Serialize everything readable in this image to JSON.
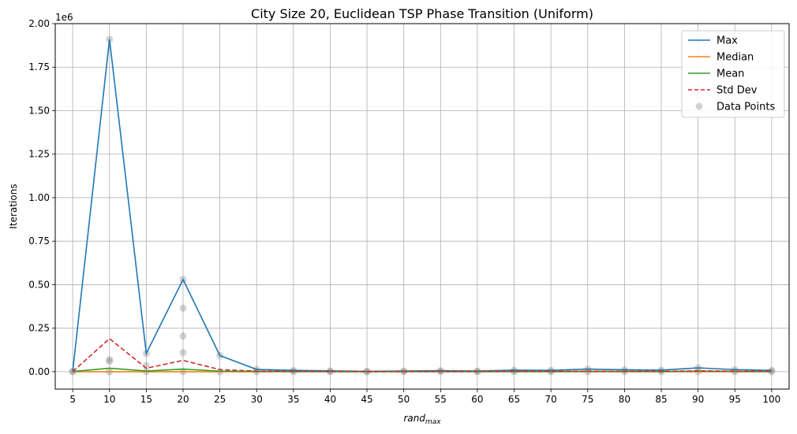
{
  "chart_data": {
    "type": "line",
    "title": "City Size 20, Euclidean TSP Phase Transition (Uniform)",
    "xlabel_main": "rand",
    "xlabel_sub": "max",
    "ylabel": "Iterations",
    "y_offset_label": "1e6",
    "x": [
      5,
      10,
      15,
      20,
      25,
      30,
      35,
      40,
      45,
      50,
      55,
      60,
      65,
      70,
      75,
      80,
      85,
      90,
      95,
      100
    ],
    "y_ticks": [
      "0.00",
      "0.25",
      "0.50",
      "0.75",
      "1.00",
      "1.25",
      "1.50",
      "1.75",
      "2.00"
    ],
    "ylim": [
      -0.1,
      2.0
    ],
    "grid": true,
    "legend_position": "top-right",
    "series": [
      {
        "name": "Max",
        "color": "#1f77b4",
        "dash": false,
        "values": [
          0.002,
          1.91,
          0.105,
          0.53,
          0.093,
          0.013,
          0.008,
          0.005,
          0.002,
          0.004,
          0.006,
          0.004,
          0.009,
          0.008,
          0.015,
          0.011,
          0.009,
          0.022,
          0.012,
          0.008
        ]
      },
      {
        "name": "Median",
        "color": "#ff7f0e",
        "dash": false,
        "values": [
          0.0,
          0.0,
          0.0,
          0.0,
          0.0,
          0.0,
          0.0,
          0.0,
          0.0,
          0.0,
          0.0,
          0.0,
          0.0,
          0.0,
          0.0,
          0.0,
          0.0,
          0.0,
          0.0,
          0.0
        ]
      },
      {
        "name": "Mean",
        "color": "#2ca02c",
        "dash": false,
        "values": [
          0.001,
          0.02,
          0.004,
          0.015,
          0.003,
          0.002,
          0.001,
          0.001,
          0.0,
          0.001,
          0.001,
          0.001,
          0.001,
          0.001,
          0.002,
          0.002,
          0.001,
          0.003,
          0.002,
          0.001
        ]
      },
      {
        "name": "Std Dev",
        "color": "#d62728",
        "dash": true,
        "values": [
          0.001,
          0.19,
          0.02,
          0.065,
          0.012,
          0.003,
          0.002,
          0.001,
          0.001,
          0.001,
          0.001,
          0.001,
          0.002,
          0.002,
          0.003,
          0.002,
          0.002,
          0.005,
          0.003,
          0.002
        ]
      }
    ],
    "data_points": {
      "name": "Data Points",
      "color": "#808080",
      "points": [
        [
          5,
          0.0
        ],
        [
          5,
          0.002
        ],
        [
          10,
          0.0
        ],
        [
          10,
          0.06
        ],
        [
          10,
          0.07
        ],
        [
          10,
          1.91
        ],
        [
          15,
          0.0
        ],
        [
          15,
          0.035
        ],
        [
          15,
          0.105
        ],
        [
          20,
          0.0
        ],
        [
          20,
          0.11
        ],
        [
          20,
          0.205
        ],
        [
          20,
          0.365
        ],
        [
          20,
          0.53
        ],
        [
          25,
          0.0
        ],
        [
          25,
          0.093
        ],
        [
          30,
          0.0
        ],
        [
          30,
          0.013
        ],
        [
          35,
          0.0
        ],
        [
          35,
          0.008
        ],
        [
          40,
          0.0
        ],
        [
          40,
          0.005
        ],
        [
          45,
          0.0
        ],
        [
          45,
          0.002
        ],
        [
          50,
          0.0
        ],
        [
          50,
          0.004
        ],
        [
          55,
          0.0
        ],
        [
          55,
          0.006
        ],
        [
          60,
          0.0
        ],
        [
          60,
          0.004
        ],
        [
          65,
          0.0
        ],
        [
          65,
          0.009
        ],
        [
          70,
          0.0
        ],
        [
          70,
          0.008
        ],
        [
          75,
          0.0
        ],
        [
          75,
          0.015
        ],
        [
          80,
          0.0
        ],
        [
          80,
          0.011
        ],
        [
          85,
          0.0
        ],
        [
          85,
          0.009
        ],
        [
          90,
          0.0
        ],
        [
          90,
          0.022
        ],
        [
          95,
          0.0
        ],
        [
          95,
          0.012
        ],
        [
          100,
          0.0
        ],
        [
          100,
          0.008
        ]
      ]
    }
  }
}
